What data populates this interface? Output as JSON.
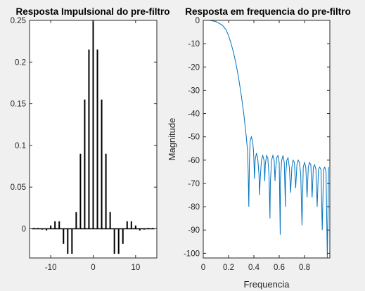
{
  "chart_data": [
    {
      "type": "bar",
      "style": "stem",
      "title": "Resposta Impulsional do pre-filtro",
      "xlabel": "",
      "ylabel": "",
      "xlim": [
        -15,
        15
      ],
      "ylim": [
        -0.035,
        0.25
      ],
      "x_ticks": [
        "-10",
        "0",
        "10"
      ],
      "y_ticks": [
        "0",
        "0.05",
        "0.1",
        "0.15",
        "0.2",
        "0.25"
      ],
      "grid": false,
      "color": "#000000",
      "x": [
        -14,
        -13,
        -12,
        -11,
        -10,
        -9,
        -8,
        -7,
        -6,
        -5,
        -4,
        -3,
        -2,
        -1,
        0,
        1,
        2,
        3,
        4,
        5,
        6,
        7,
        8,
        9,
        10,
        11,
        12,
        13,
        14
      ],
      "values": [
        0.001,
        0.001,
        -0.001,
        -0.002,
        0.004,
        0.009,
        0.009,
        -0.018,
        -0.03,
        -0.03,
        0.02,
        0.09,
        0.155,
        0.215,
        0.25,
        0.215,
        0.155,
        0.09,
        0.02,
        -0.03,
        -0.03,
        -0.018,
        0.009,
        0.009,
        0.004,
        -0.002,
        -0.001,
        0.001,
        0.001
      ]
    },
    {
      "type": "line",
      "title": "Resposta em frequencia do pre-filtro",
      "xlabel": "Frequencia",
      "ylabel": "Magnitude",
      "xlim": [
        0,
        1
      ],
      "ylim": [
        -102,
        0
      ],
      "x_ticks": [
        "0",
        "0.2",
        "0.4",
        "0.6",
        "0.8"
      ],
      "y_ticks": [
        "0",
        "-10",
        "-20",
        "-30",
        "-40",
        "-50",
        "-60",
        "-70",
        "-80",
        "-90",
        "-100"
      ],
      "grid": false,
      "color": "#0072bd",
      "series": [
        {
          "x": [
            0,
            0.05,
            0.1,
            0.15,
            0.18,
            0.2,
            0.22,
            0.24,
            0.26,
            0.28,
            0.3,
            0.32,
            0.34,
            0.35,
            0.355,
            0.36,
            0.365,
            0.37,
            0.38,
            0.39,
            0.397,
            0.4,
            0.405,
            0.41,
            0.42,
            0.43,
            0.44,
            0.445,
            0.45,
            0.46,
            0.47,
            0.48,
            0.486,
            0.49,
            0.5,
            0.51,
            0.52,
            0.527,
            0.53,
            0.54,
            0.55,
            0.56,
            0.567,
            0.57,
            0.58,
            0.59,
            0.6,
            0.608,
            0.61,
            0.62,
            0.63,
            0.64,
            0.649,
            0.65,
            0.66,
            0.67,
            0.68,
            0.69,
            0.7,
            0.71,
            0.72,
            0.73,
            0.74,
            0.75,
            0.76,
            0.77,
            0.78,
            0.79,
            0.8,
            0.81,
            0.82,
            0.83,
            0.84,
            0.85,
            0.86,
            0.87,
            0.88,
            0.89,
            0.9,
            0.91,
            0.92,
            0.93,
            0.94,
            0.95,
            0.96,
            0.97,
            0.98,
            0.99
          ],
          "values": [
            0,
            0,
            -0.5,
            -2,
            -4,
            -6.5,
            -10,
            -14,
            -19,
            -25,
            -32,
            -40,
            -50,
            -56,
            -65,
            -80,
            -60,
            -52,
            -50,
            -52,
            -56,
            -60,
            -68,
            -60,
            -57,
            -59,
            -66,
            -75,
            -68,
            -60,
            -58,
            -60,
            -69,
            -62,
            -58,
            -59,
            -67,
            -85,
            -70,
            -60,
            -58,
            -60,
            -69,
            -65,
            -59,
            -58,
            -61,
            -92,
            -68,
            -60,
            -58,
            -61,
            -80,
            -68,
            -60,
            -59,
            -63,
            -74,
            -63,
            -60,
            -61,
            -72,
            -62,
            -60,
            -61,
            -66,
            -88,
            -63,
            -61,
            -63,
            -76,
            -63,
            -61,
            -62,
            -76,
            -63,
            -62,
            -64,
            -80,
            -64,
            -63,
            -64,
            -90,
            -64,
            -63,
            -65,
            -102,
            -63
          ]
        }
      ]
    }
  ]
}
